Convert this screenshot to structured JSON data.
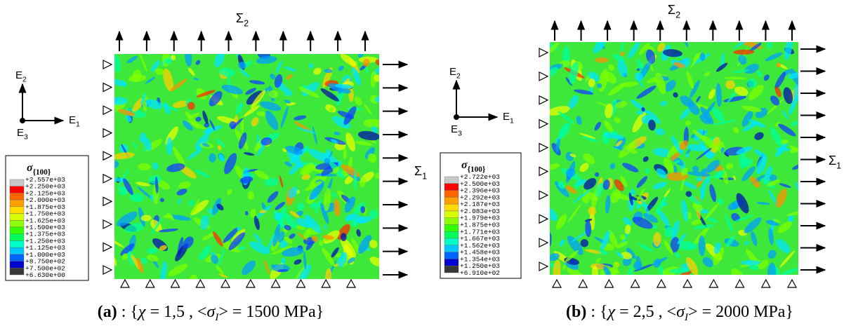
{
  "panels": [
    {
      "sigma_top": {
        "symbol": "Σ",
        "sub": "2"
      },
      "sigma_right": {
        "symbol": "Σ",
        "sub": "1"
      },
      "axes": {
        "e1": {
          "symbol": "E",
          "sub": "1"
        },
        "e2": {
          "symbol": "E",
          "sub": "2"
        },
        "e3": {
          "symbol": "E",
          "sub": "3"
        }
      },
      "legend": {
        "title": {
          "symbol": "σ",
          "sub": "{100}"
        },
        "labels": [
          "+2.557e+03",
          "+2.250e+03",
          "+2.125e+03",
          "+2.000e+03",
          "+1.875e+03",
          "+1.750e+03",
          "+1.625e+03",
          "+1.500e+03",
          "+1.375e+03",
          "+1.250e+03",
          "+1.125e+03",
          "+1.000e+03",
          "+8.750e+02",
          "+7.500e+02",
          "+6.630e+00"
        ]
      },
      "caption": [
        "(a)",
        " : {",
        "χ",
        " = 1,5 , <",
        "σ",
        "I",
        "> = 1500 MPa}"
      ]
    },
    {
      "sigma_top": {
        "symbol": "Σ",
        "sub": "2"
      },
      "sigma_right": {
        "symbol": "Σ",
        "sub": "1"
      },
      "axes": {
        "e1": {
          "symbol": "E",
          "sub": "1"
        },
        "e2": {
          "symbol": "E",
          "sub": "2"
        },
        "e3": {
          "symbol": "E",
          "sub": "3"
        }
      },
      "legend": {
        "title": {
          "symbol": "σ",
          "sub": "{100}"
        },
        "labels": [
          "+2.722e+03",
          "+2.500e+03",
          "+2.396e+03",
          "+2.292e+03",
          "+2.187e+03",
          "+2.083e+03",
          "+1.979e+03",
          "+1.875e+03",
          "+1.771e+03",
          "+1.667e+03",
          "+1.562e+03",
          "+1.458e+03",
          "+1.354e+03",
          "+1.250e+03",
          "+6.910e+02"
        ]
      },
      "caption": [
        "(b)",
        " : {",
        "χ",
        " = 2,5 , <",
        "σ",
        "I",
        "> = 2000 MPa}"
      ]
    }
  ]
}
